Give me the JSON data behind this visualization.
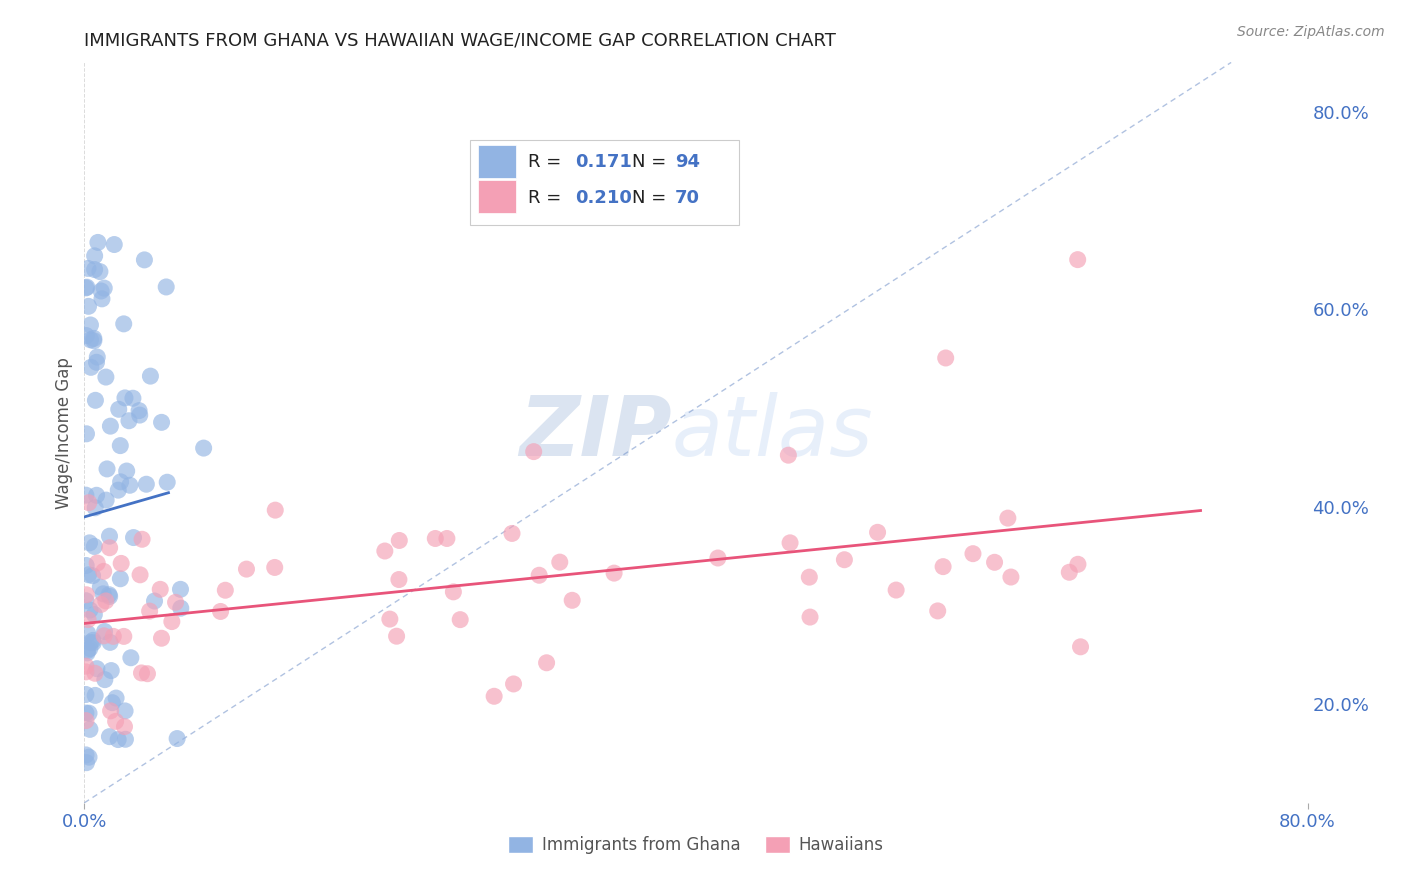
{
  "title": "IMMIGRANTS FROM GHANA VS HAWAIIAN WAGE/INCOME GAP CORRELATION CHART",
  "source_text": "Source: ZipAtlas.com",
  "ylabel": "Wage/Income Gap",
  "xlim": [
    0.0,
    0.8
  ],
  "ylim": [
    0.1,
    0.85
  ],
  "y_ticks_right": [
    0.2,
    0.4,
    0.6,
    0.8
  ],
  "y_tick_labels_right": [
    "20.0%",
    "40.0%",
    "60.0%",
    "80.0%"
  ],
  "blue_color": "#92b4e3",
  "pink_color": "#f4a0b5",
  "blue_line_color": "#4472c4",
  "pink_line_color": "#e8547a",
  "r_n_color": "#4472c4",
  "watermark_zip": "ZIP",
  "watermark_atlas": "atlas",
  "watermark_color_zip": "#b8cce8",
  "watermark_color_atlas": "#c8d8f0",
  "background_color": "#ffffff",
  "grid_color": "#d8d8d8",
  "diag_line_color": "#7090c8",
  "title_fontsize": 13,
  "legend_r1": "0.171",
  "legend_n1": "94",
  "legend_r2": "0.210",
  "legend_n2": "70"
}
